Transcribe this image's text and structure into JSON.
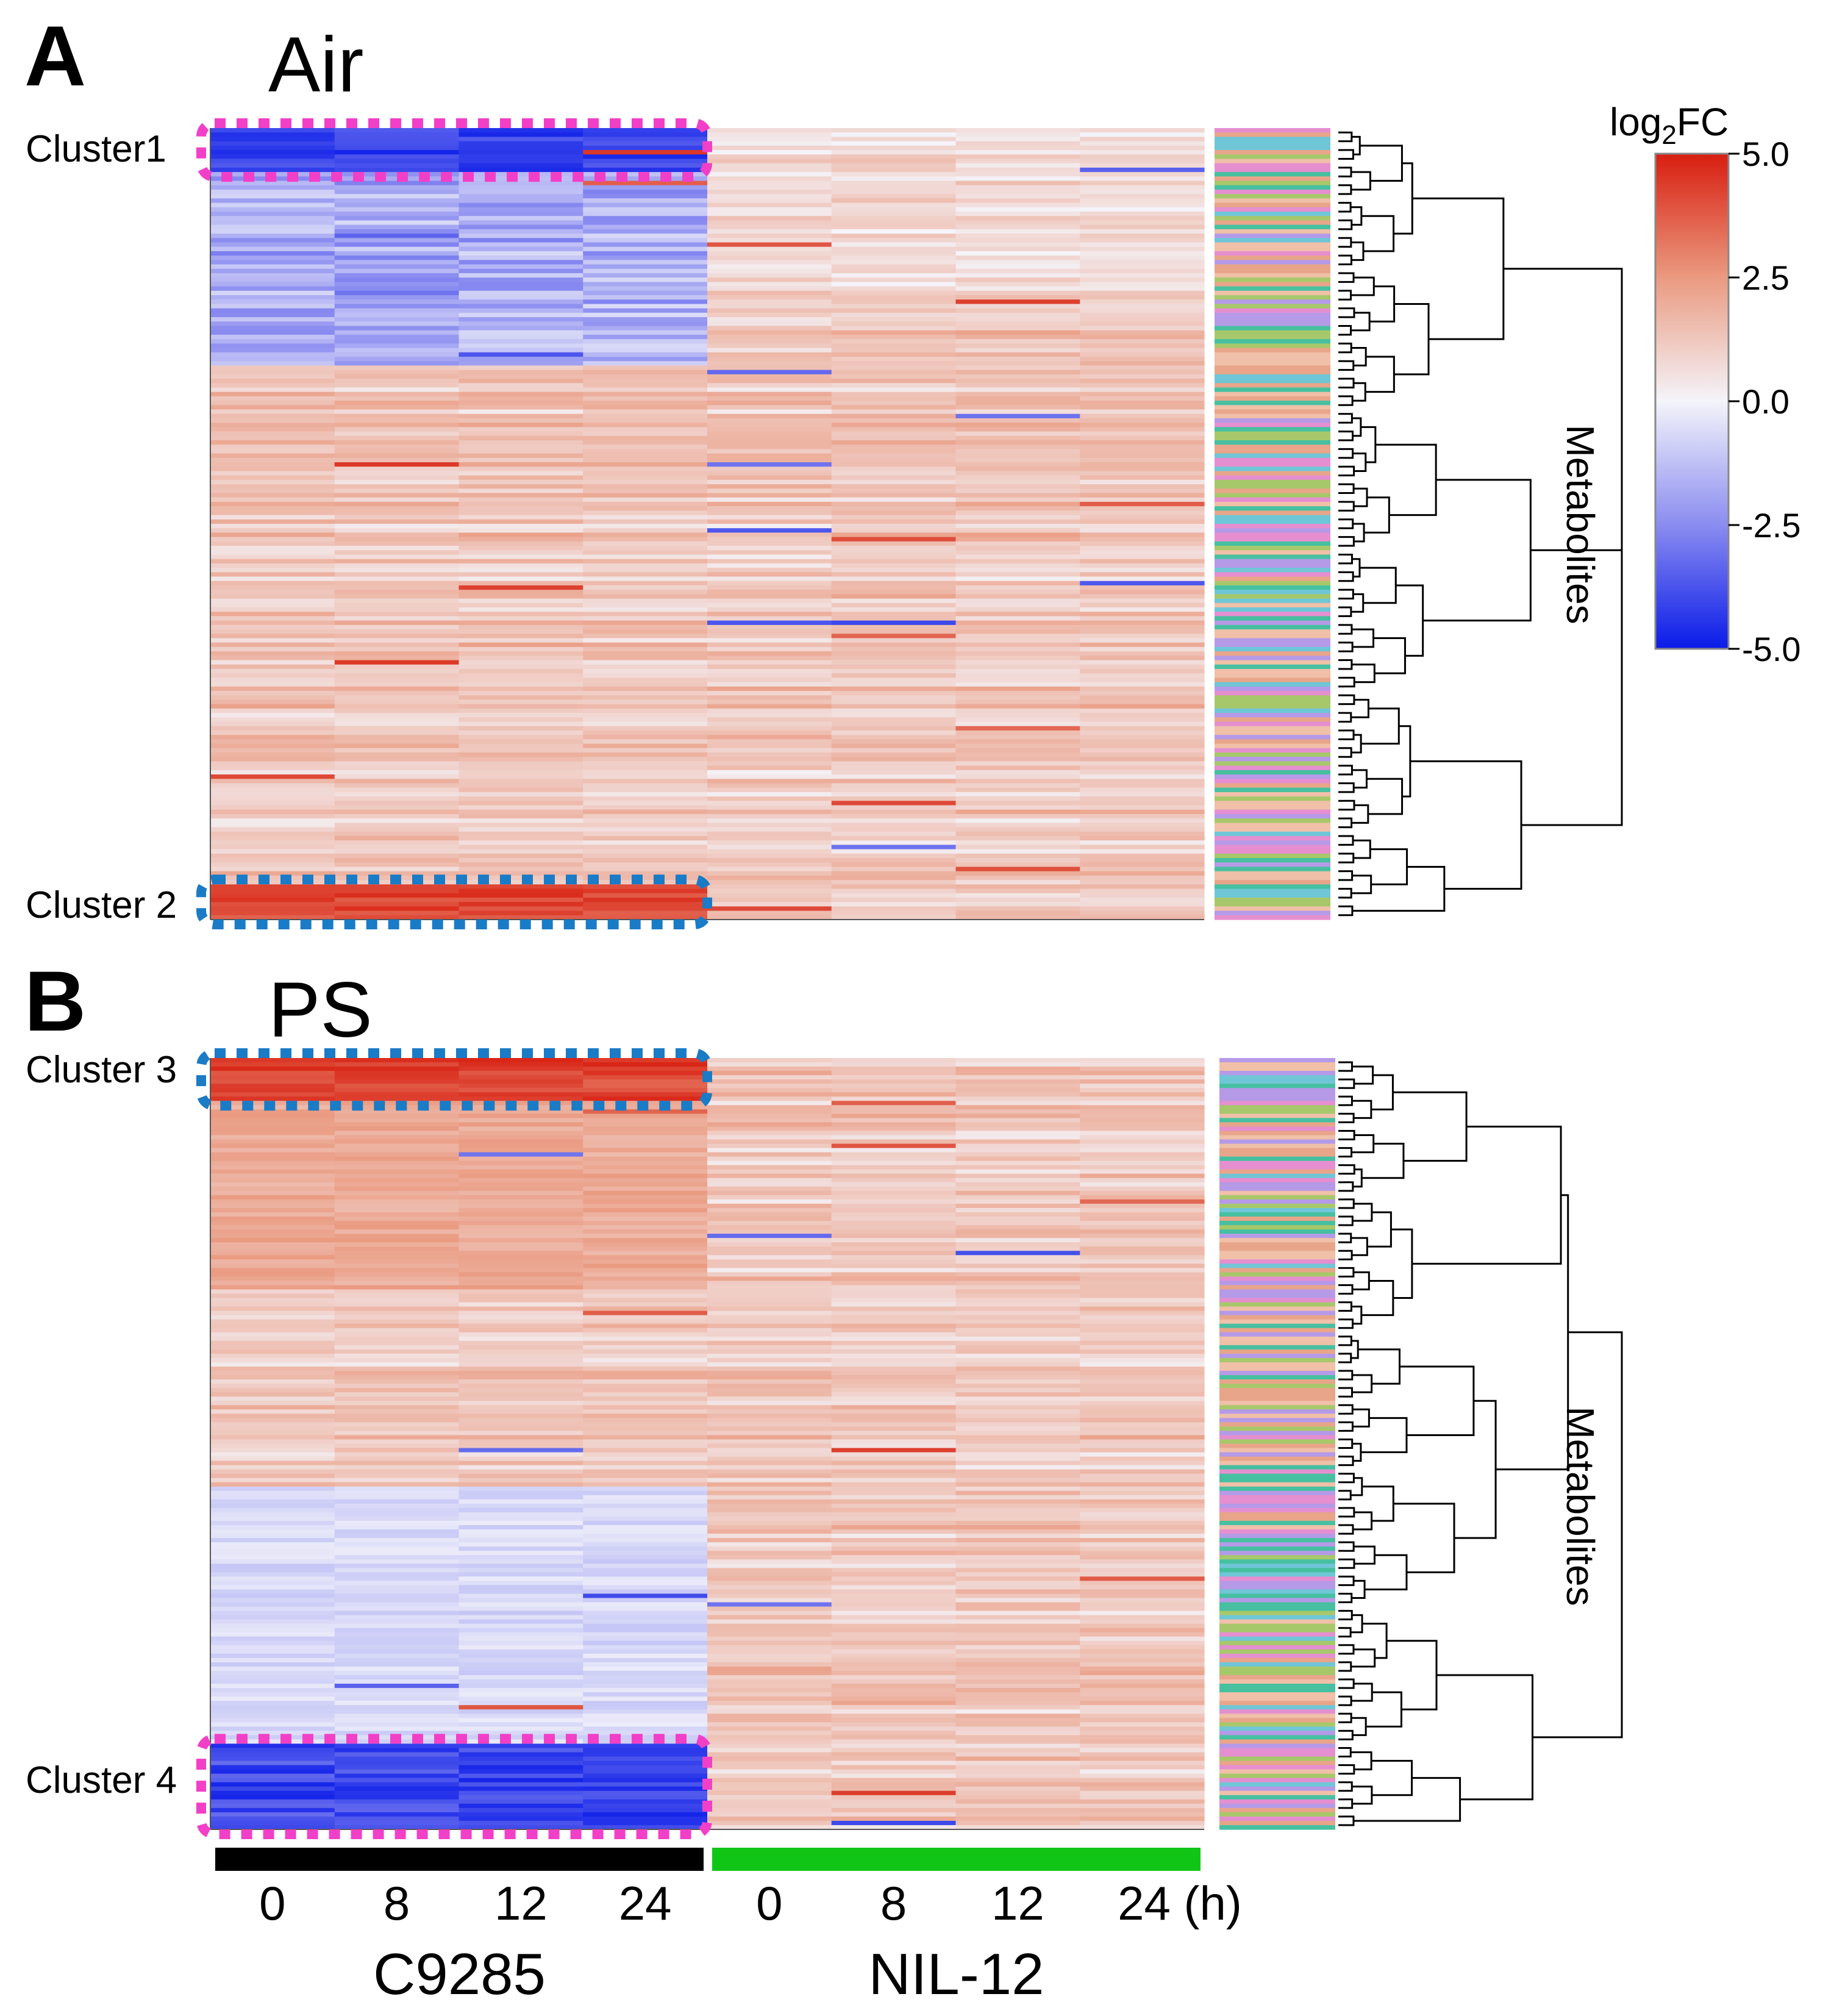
{
  "chart_data": {
    "type": "heatmap",
    "colorbar": {
      "title": "log2FC",
      "title_base": "log",
      "title_sub": "2",
      "title_suffix": "FC",
      "min": -5.0,
      "max": 5.0,
      "ticks": [
        5.0,
        2.5,
        0.0,
        -2.5,
        -5.0
      ],
      "tick_labels": [
        "5.0",
        "2.5",
        "0.0",
        "-2.5",
        "-5.0"
      ],
      "colors": [
        "#0a1be8",
        "#8a8cf0",
        "#f4f4fa",
        "#ea9a80",
        "#d81e10"
      ]
    },
    "x_tick_labels": [
      "0",
      "8",
      "12",
      "24",
      "0",
      "8",
      "12",
      "24 (h)"
    ],
    "groups": [
      {
        "name": "C9285",
        "columns": 4,
        "color": "#000000"
      },
      {
        "name": "NIL-12",
        "columns": 4,
        "color": "#11c516"
      }
    ],
    "y_axis_label": "Metabolites",
    "panels": [
      {
        "letter": "A",
        "title": "Air",
        "clusters": [
          {
            "label": "Cluster1",
            "position": "top",
            "border_color": "#f23fc8",
            "direction": "down"
          },
          {
            "label": "Cluster 2",
            "position": "bottom",
            "border_color": "#1a7bc6",
            "direction": "up"
          }
        ]
      },
      {
        "letter": "B",
        "title": "PS",
        "clusters": [
          {
            "label": "Cluster 3",
            "position": "top",
            "border_color": "#1a7bc6",
            "direction": "up"
          },
          {
            "label": "Cluster 4",
            "position": "bottom",
            "border_color": "#f23fc8",
            "direction": "down"
          }
        ]
      }
    ]
  }
}
